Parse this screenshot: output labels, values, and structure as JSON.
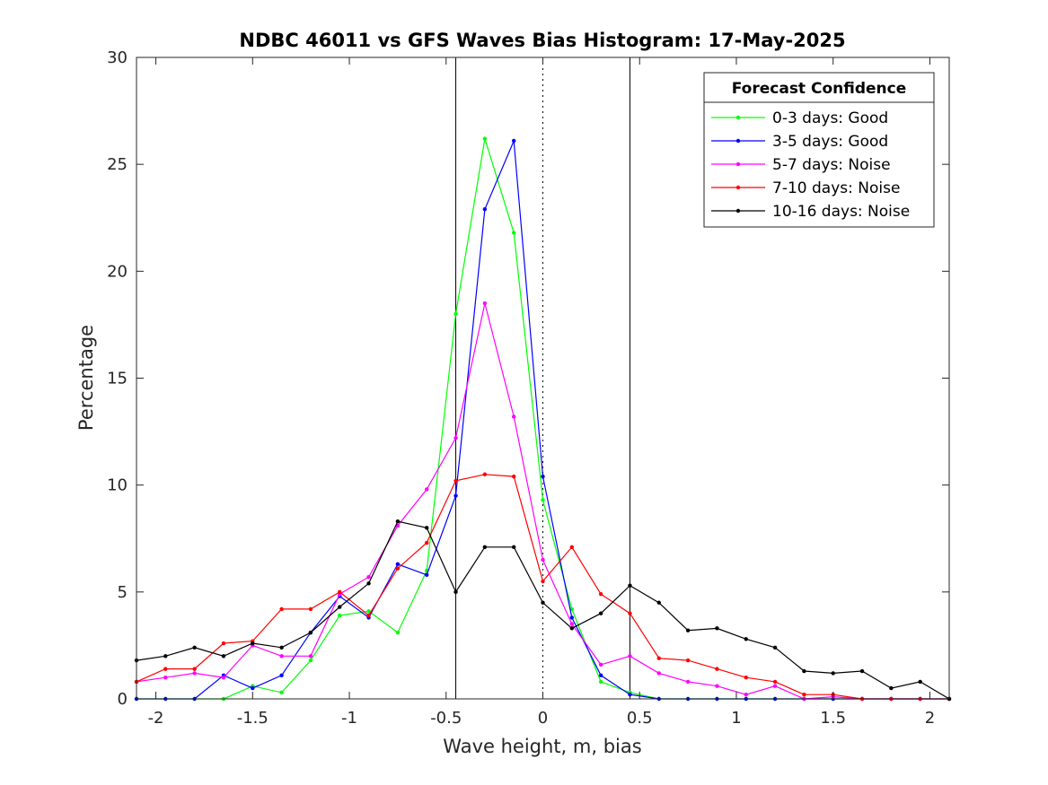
{
  "chart_data": {
    "type": "line",
    "title": "NDBC 46011 vs GFS Waves Bias Histogram: 17-May-2025",
    "xlabel": "Wave height, m, bias",
    "ylabel": "Percentage",
    "xlim": [
      -2.1,
      2.1
    ],
    "ylim": [
      0,
      30
    ],
    "xticks": [
      -2,
      -1.5,
      -1,
      -0.5,
      0,
      0.5,
      1,
      1.5,
      2
    ],
    "xtick_labels": [
      "-2",
      "-1.5",
      "-1",
      "-0.5",
      "0",
      "0.5",
      "1",
      "1.5",
      "2"
    ],
    "yticks": [
      0,
      5,
      10,
      15,
      20,
      25,
      30
    ],
    "ytick_labels": [
      "0",
      "5",
      "10",
      "15",
      "20",
      "25",
      "30"
    ],
    "grid": false,
    "legend_title": "Forecast Confidence",
    "legend_position": "top-right",
    "vertical_lines": [
      {
        "x": -0.45,
        "style": "solid"
      },
      {
        "x": 0,
        "style": "dotted"
      },
      {
        "x": 0.45,
        "style": "solid"
      }
    ],
    "x": [
      -2.1,
      -1.95,
      -1.8,
      -1.65,
      -1.5,
      -1.35,
      -1.2,
      -1.05,
      -0.9,
      -0.75,
      -0.6,
      -0.45,
      -0.3,
      -0.15,
      0,
      0.15,
      0.3,
      0.45,
      0.6,
      0.75,
      0.9,
      1.05,
      1.2,
      1.35,
      1.5,
      1.65,
      1.8,
      1.95,
      2.1
    ],
    "series": [
      {
        "name": "0-3 days: Good",
        "color": "#00ff00",
        "values": [
          0,
          0,
          0,
          0,
          0.6,
          0.3,
          1.8,
          3.9,
          4.1,
          3.1,
          6.0,
          18.0,
          26.2,
          21.8,
          9.3,
          4.2,
          0.8,
          0.3,
          0,
          0,
          0,
          0,
          0,
          0,
          0,
          0,
          0,
          0,
          0
        ]
      },
      {
        "name": "3-5 days: Good",
        "color": "#0000ff",
        "values": [
          0,
          0,
          0,
          1.1,
          0.5,
          1.1,
          3.1,
          4.8,
          3.8,
          6.3,
          5.8,
          9.5,
          22.9,
          26.1,
          10.4,
          3.8,
          1.1,
          0.2,
          0,
          0,
          0,
          0,
          0,
          0,
          0,
          0,
          0,
          0,
          0
        ]
      },
      {
        "name": "5-7 days: Noise",
        "color": "#ff00ff",
        "values": [
          0.8,
          1.0,
          1.2,
          1.0,
          2.5,
          2.0,
          2.0,
          4.9,
          5.7,
          8.1,
          9.8,
          12.2,
          18.5,
          13.2,
          6.5,
          3.5,
          1.6,
          2.0,
          1.2,
          0.8,
          0.6,
          0.2,
          0.6,
          0,
          0.1,
          0,
          0,
          0,
          0
        ]
      },
      {
        "name": "7-10 days: Noise",
        "color": "#ff0000",
        "values": [
          0.8,
          1.4,
          1.4,
          2.6,
          2.7,
          4.2,
          4.2,
          5.0,
          3.9,
          6.1,
          7.3,
          10.2,
          10.5,
          10.4,
          5.5,
          7.1,
          4.9,
          4.0,
          1.9,
          1.8,
          1.4,
          1.0,
          0.8,
          0.2,
          0.2,
          0,
          0,
          0,
          0
        ]
      },
      {
        "name": "10-16 days: Noise",
        "color": "#000000",
        "values": [
          1.8,
          2.0,
          2.4,
          2.0,
          2.6,
          2.4,
          3.1,
          4.3,
          5.4,
          8.3,
          8.0,
          5.0,
          7.1,
          7.1,
          4.5,
          3.3,
          4.0,
          5.3,
          4.5,
          3.2,
          3.3,
          2.8,
          2.4,
          1.3,
          1.2,
          1.3,
          0.5,
          0.8,
          0
        ]
      }
    ]
  }
}
